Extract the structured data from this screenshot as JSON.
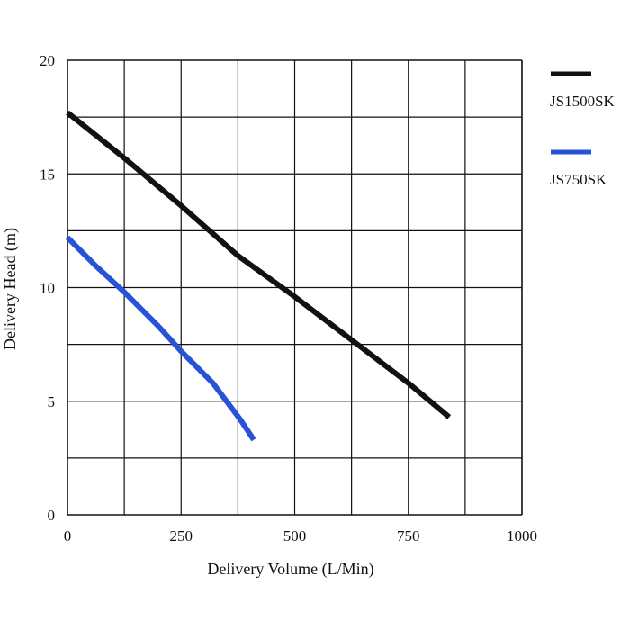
{
  "chart_data": {
    "type": "line",
    "title": "",
    "xlabel": "Delivery Volume (L/Min)",
    "ylabel": "Delivery Head (m)",
    "xlim": [
      0,
      1000
    ],
    "ylim": [
      0,
      20
    ],
    "grid": true,
    "legend_position": "top-right, outside plot",
    "x_ticks": [
      0,
      250,
      500,
      750,
      1000
    ],
    "x_tick_labels": [
      "0",
      "250",
      "500",
      "750",
      "1000"
    ],
    "y_ticks": [
      0,
      5,
      10,
      15,
      20
    ],
    "y_tick_labels": [
      "0",
      "5",
      "10",
      "15",
      "20"
    ],
    "series": [
      {
        "name": "JS1500SK",
        "color": "#111111",
        "points": [
          [
            0,
            17.7
          ],
          [
            125,
            15.7
          ],
          [
            250,
            13.6
          ],
          [
            375,
            11.4
          ],
          [
            500,
            9.6
          ],
          [
            625,
            7.7
          ],
          [
            750,
            5.8
          ],
          [
            840,
            4.3
          ]
        ]
      },
      {
        "name": "JS750SK",
        "color": "#2a52d6",
        "points": [
          [
            0,
            12.2
          ],
          [
            60,
            11.0
          ],
          [
            125,
            9.8
          ],
          [
            200,
            8.3
          ],
          [
            250,
            7.2
          ],
          [
            320,
            5.8
          ],
          [
            380,
            4.2
          ],
          [
            410,
            3.3
          ]
        ]
      }
    ]
  }
}
